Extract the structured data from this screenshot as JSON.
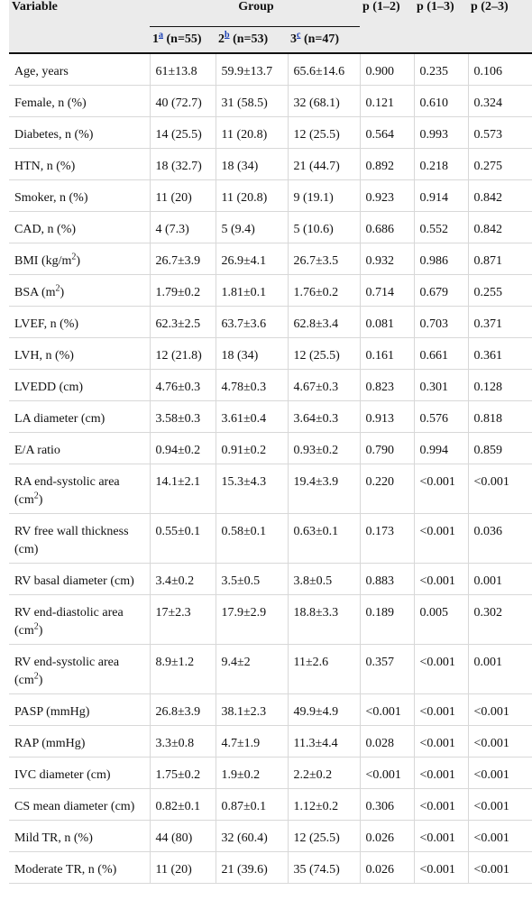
{
  "header": {
    "variable": "Variable",
    "group": "Group",
    "p12": "p (1–2)",
    "p13": "p (1–3)",
    "p23": "p (2–3)",
    "g1_num": "1",
    "g1_sup": "a",
    "g1_n": " (n=55)",
    "g2_num": "2",
    "g2_sup": "b",
    "g2_n": " (n=53)",
    "g3_num": "3",
    "g3_sup": "c",
    "g3_n": " (n=47)"
  },
  "rows": [
    {
      "label": "Age, years",
      "sup": "",
      "suffix": "",
      "g1": "61±13.8",
      "g2": "59.9±13.7",
      "g3": "65.6±14.6",
      "p12": "0.900",
      "p13": "0.235",
      "p23": "0.106"
    },
    {
      "label": "Female, n (%)",
      "sup": "",
      "suffix": "",
      "g1": "40 (72.7)",
      "g2": "31 (58.5)",
      "g3": "32 (68.1)",
      "p12": "0.121",
      "p13": "0.610",
      "p23": "0.324"
    },
    {
      "label": "Diabetes, n (%)",
      "sup": "",
      "suffix": "",
      "g1": "14 (25.5)",
      "g2": "11 (20.8)",
      "g3": "12 (25.5)",
      "p12": "0.564",
      "p13": "0.993",
      "p23": "0.573"
    },
    {
      "label": "HTN, n (%)",
      "sup": "",
      "suffix": "",
      "g1": "18 (32.7)",
      "g2": "18 (34)",
      "g3": "21 (44.7)",
      "p12": "0.892",
      "p13": "0.218",
      "p23": "0.275"
    },
    {
      "label": "Smoker, n (%)",
      "sup": "",
      "suffix": "",
      "g1": "11 (20)",
      "g2": "11 (20.8)",
      "g3": "9 (19.1)",
      "p12": "0.923",
      "p13": "0.914",
      "p23": "0.842"
    },
    {
      "label": "CAD, n (%)",
      "sup": "",
      "suffix": "",
      "g1": "4 (7.3)",
      "g2": "5 (9.4)",
      "g3": "5 (10.6)",
      "p12": "0.686",
      "p13": "0.552",
      "p23": "0.842"
    },
    {
      "label": "BMI (kg/m",
      "sup": "2",
      "suffix": ")",
      "g1": "26.7±3.9",
      "g2": "26.9±4.1",
      "g3": "26.7±3.5",
      "p12": "0.932",
      "p13": "0.986",
      "p23": "0.871"
    },
    {
      "label": "BSA (m",
      "sup": "2",
      "suffix": ")",
      "g1": "1.79±0.2",
      "g2": "1.81±0.1",
      "g3": "1.76±0.2",
      "p12": "0.714",
      "p13": "0.679",
      "p23": "0.255"
    },
    {
      "label": "LVEF, n (%)",
      "sup": "",
      "suffix": "",
      "g1": "62.3±2.5",
      "g2": "63.7±3.6",
      "g3": "62.8±3.4",
      "p12": "0.081",
      "p13": "0.703",
      "p23": "0.371"
    },
    {
      "label": "LVH, n (%)",
      "sup": "",
      "suffix": "",
      "g1": "12 (21.8)",
      "g2": "18 (34)",
      "g3": "12 (25.5)",
      "p12": "0.161",
      "p13": "0.661",
      "p23": "0.361"
    },
    {
      "label": "LVEDD (cm)",
      "sup": "",
      "suffix": "",
      "g1": "4.76±0.3",
      "g2": "4.78±0.3",
      "g3": "4.67±0.3",
      "p12": "0.823",
      "p13": "0.301",
      "p23": "0.128"
    },
    {
      "label": "LA diameter (cm)",
      "sup": "",
      "suffix": "",
      "g1": "3.58±0.3",
      "g2": "3.61±0.4",
      "g3": "3.64±0.3",
      "p12": "0.913",
      "p13": "0.576",
      "p23": "0.818"
    },
    {
      "label": "E/A ratio",
      "sup": "",
      "suffix": "",
      "g1": "0.94±0.2",
      "g2": "0.91±0.2",
      "g3": "0.93±0.2",
      "p12": "0.790",
      "p13": "0.994",
      "p23": "0.859"
    },
    {
      "label": "RA end-systolic area (cm",
      "sup": "2",
      "suffix": ")",
      "g1": "14.1±2.1",
      "g2": "15.3±4.3",
      "g3": "19.4±3.9",
      "p12": "0.220",
      "p13": "<0.001",
      "p23": "<0.001"
    },
    {
      "label": "RV free wall thickness (cm)",
      "sup": "",
      "suffix": "",
      "g1": "0.55±0.1",
      "g2": "0.58±0.1",
      "g3": "0.63±0.1",
      "p12": "0.173",
      "p13": "<0.001",
      "p23": "0.036"
    },
    {
      "label": "RV basal diameter (cm)",
      "sup": "",
      "suffix": "",
      "g1": "3.4±0.2",
      "g2": "3.5±0.5",
      "g3": "3.8±0.5",
      "p12": "0.883",
      "p13": "<0.001",
      "p23": "0.001"
    },
    {
      "label": "RV end-diastolic area (cm",
      "sup": "2",
      "suffix": ")",
      "g1": "17±2.3",
      "g2": "17.9±2.9",
      "g3": "18.8±3.3",
      "p12": "0.189",
      "p13": "0.005",
      "p23": "0.302"
    },
    {
      "label": "RV end-systolic area (cm",
      "sup": "2",
      "suffix": ")",
      "g1": "8.9±1.2",
      "g2": "9.4±2",
      "g3": "11±2.6",
      "p12": "0.357",
      "p13": "<0.001",
      "p23": "0.001"
    },
    {
      "label": "PASP (mmHg)",
      "sup": "",
      "suffix": "",
      "g1": "26.8±3.9",
      "g2": "38.1±2.3",
      "g3": "49.9±4.9",
      "p12": "<0.001",
      "p13": "<0.001",
      "p23": "<0.001"
    },
    {
      "label": "RAP (mmHg)",
      "sup": "",
      "suffix": "",
      "g1": "3.3±0.8",
      "g2": "4.7±1.9",
      "g3": "11.3±4.4",
      "p12": "0.028",
      "p13": "<0.001",
      "p23": "<0.001"
    },
    {
      "label": "IVC diameter (cm)",
      "sup": "",
      "suffix": "",
      "g1": "1.75±0.2",
      "g2": "1.9±0.2",
      "g3": "2.2±0.2",
      "p12": "<0.001",
      "p13": "<0.001",
      "p23": "<0.001"
    },
    {
      "label": "CS mean diameter (cm)",
      "sup": "",
      "suffix": "",
      "g1": "0.82±0.1",
      "g2": "0.87±0.1",
      "g3": "1.12±0.2",
      "p12": "0.306",
      "p13": "<0.001",
      "p23": "<0.001"
    },
    {
      "label": "Mild TR, n (%)",
      "sup": "",
      "suffix": "",
      "g1": "44 (80)",
      "g2": "32 (60.4)",
      "g3": "12 (25.5)",
      "p12": "0.026",
      "p13": "<0.001",
      "p23": "<0.001"
    },
    {
      "label": "Moderate TR, n (%)",
      "sup": "",
      "suffix": "",
      "g1": "11 (20)",
      "g2": "21 (39.6)",
      "g3": "35 (74.5)",
      "p12": "0.026",
      "p13": "<0.001",
      "p23": "<0.001"
    }
  ]
}
